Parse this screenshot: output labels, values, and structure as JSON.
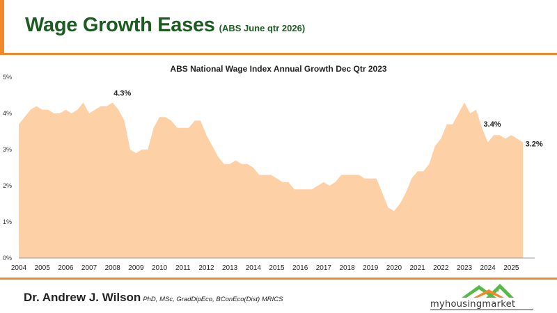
{
  "header": {
    "title": "Wage Growth Eases",
    "subtitle": "(ABS June qtr 2026)"
  },
  "footer": {
    "author": "Dr. Andrew J. Wilson",
    "credentials": "PhD, MSc, GradDipEco, BConEco(Dist) MRICS",
    "logo_text": "myhousingmarket",
    "logo_icon": "house-roofs-icon"
  },
  "colors": {
    "accent": "#f0892a",
    "title": "#1d5b22",
    "area_fill": "#fdd0a6",
    "logo_green": "#57b947",
    "logo_orange": "#f0892a"
  },
  "chart_data": {
    "type": "area",
    "title": "ABS National Wage Index Annual Growth Dec Qtr 2023",
    "xlabel": "",
    "ylabel": "",
    "xlim": [
      2004,
      2026
    ],
    "ylim": [
      0,
      5
    ],
    "y_ticks": [
      "0%",
      "1%",
      "2%",
      "3%",
      "4%",
      "5%"
    ],
    "x_ticks": [
      "2004",
      "2005",
      "2006",
      "2007",
      "2008",
      "2009",
      "2010",
      "2011",
      "2012",
      "2013",
      "2014",
      "2015",
      "2016",
      "2017",
      "2018",
      "2019",
      "2020",
      "2021",
      "2022",
      "2023",
      "2024",
      "2025"
    ],
    "grid": false,
    "legend": "none",
    "series": [
      {
        "x": [
          2004.0,
          2004.25,
          2004.5,
          2004.75,
          2005.0,
          2005.25,
          2005.5,
          2005.75,
          2006.0,
          2006.25,
          2006.5,
          2006.75,
          2007.0,
          2007.25,
          2007.5,
          2007.75,
          2008.0,
          2008.25,
          2008.5,
          2008.75,
          2009.0,
          2009.25,
          2009.5,
          2009.75,
          2010.0,
          2010.25,
          2010.5,
          2010.75,
          2011.0,
          2011.25,
          2011.5,
          2011.75,
          2012.0,
          2012.25,
          2012.5,
          2012.75,
          2013.0,
          2013.25,
          2013.5,
          2013.75,
          2014.0,
          2014.25,
          2014.5,
          2014.75,
          2015.0,
          2015.25,
          2015.5,
          2015.75,
          2016.0,
          2016.25,
          2016.5,
          2016.75,
          2017.0,
          2017.25,
          2017.5,
          2017.75,
          2018.0,
          2018.25,
          2018.5,
          2018.75,
          2019.0,
          2019.25,
          2019.5,
          2019.75,
          2020.0,
          2020.25,
          2020.5,
          2020.75,
          2021.0,
          2021.25,
          2021.5,
          2021.75,
          2022.0,
          2022.25,
          2022.5,
          2022.75,
          2023.0,
          2023.25,
          2023.5,
          2023.75,
          2024.0,
          2024.25,
          2024.5,
          2024.75,
          2025.0,
          2025.25,
          2025.5
        ],
        "values": [
          3.7,
          3.9,
          4.1,
          4.2,
          4.1,
          4.1,
          4.0,
          4.0,
          4.1,
          4.0,
          4.1,
          4.3,
          4.0,
          4.1,
          4.2,
          4.2,
          4.3,
          4.1,
          3.8,
          3.0,
          2.9,
          3.0,
          3.0,
          3.6,
          3.9,
          3.9,
          3.8,
          3.6,
          3.6,
          3.6,
          3.8,
          3.8,
          3.4,
          3.1,
          2.8,
          2.6,
          2.6,
          2.7,
          2.6,
          2.6,
          2.5,
          2.3,
          2.3,
          2.3,
          2.2,
          2.1,
          2.1,
          1.9,
          1.9,
          1.9,
          1.9,
          2.0,
          2.1,
          2.0,
          2.1,
          2.3,
          2.3,
          2.3,
          2.3,
          2.2,
          2.2,
          2.2,
          1.8,
          1.4,
          1.3,
          1.5,
          1.8,
          2.2,
          2.4,
          2.4,
          2.6,
          3.1,
          3.3,
          3.7,
          3.7,
          4.0,
          4.3,
          4.0,
          4.1,
          3.6,
          3.2,
          3.4,
          3.4,
          3.3,
          3.4,
          3.3,
          3.2
        ]
      }
    ],
    "annotations": [
      {
        "x": 2008.0,
        "y": 4.3,
        "label": "4.3%"
      },
      {
        "x": 2024.25,
        "y": 3.4,
        "label": "3.4%"
      },
      {
        "x": 2025.5,
        "y": 3.2,
        "label": "3.2%"
      }
    ]
  }
}
